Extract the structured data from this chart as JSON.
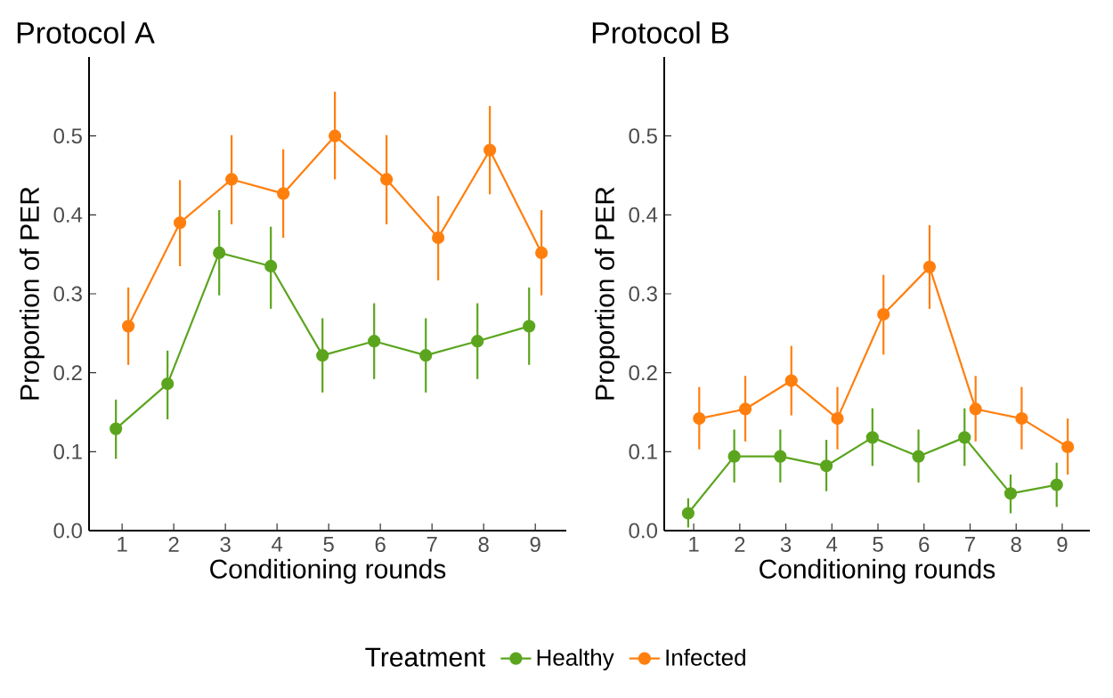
{
  "chart_data": [
    {
      "type": "line",
      "title": "Protocol A",
      "xlabel": "Conditioning rounds",
      "ylabel": "Proportion of PER",
      "categories": [
        "1",
        "2",
        "3",
        "4",
        "5",
        "6",
        "7",
        "8",
        "9"
      ],
      "ylim": [
        0,
        0.6
      ],
      "yticks": [
        {
          "value": 0,
          "label": "0.0"
        },
        0.1,
        0.2,
        0.3,
        0.4,
        0.5
      ],
      "marker": "circle",
      "series": [
        {
          "color": "#5ba51e",
          "values": [
            0.129,
            0.186,
            0.352,
            0.335,
            0.222,
            0.24,
            0.222,
            0.24,
            0.259
          ],
          "errors": [
            [
              0.091,
              0.166
            ],
            [
              0.141,
              0.228
            ],
            [
              0.298,
              0.406
            ],
            [
              0.281,
              0.385
            ],
            [
              0.175,
              0.269
            ],
            [
              0.192,
              0.288
            ],
            [
              0.175,
              0.269
            ],
            [
              0.192,
              0.288
            ],
            [
              0.21,
              0.308
            ]
          ]
        },
        {
          "color": "#ff7f0e",
          "values": [
            0.259,
            0.39,
            0.445,
            0.427,
            0.5,
            0.445,
            0.371,
            0.482,
            0.352
          ],
          "errors": [
            [
              0.21,
              0.308
            ],
            [
              0.335,
              0.444
            ],
            [
              0.388,
              0.501
            ],
            [
              0.371,
              0.483
            ],
            [
              0.445,
              0.556
            ],
            [
              0.388,
              0.501
            ],
            [
              0.317,
              0.424
            ],
            [
              0.426,
              0.538
            ],
            [
              0.298,
              0.406
            ]
          ]
        }
      ]
    },
    {
      "type": "line",
      "title": "Protocol B",
      "xlabel": "Conditioning rounds",
      "ylabel": "Proportion of PER",
      "categories": [
        "1",
        "2",
        "3",
        "4",
        "5",
        "6",
        "7",
        "8",
        "9"
      ],
      "ylim": [
        0,
        0.6
      ],
      "yticks": [
        {
          "value": 0,
          "label": "0.0"
        },
        0.1,
        0.2,
        0.3,
        0.4,
        0.5
      ],
      "marker": "circle",
      "legend": "bottom",
      "legend_title": "Treatment",
      "series": [
        {
          "name": "Healthy",
          "color": "#5ba51e",
          "values": [
            0.022,
            0.094,
            0.094,
            0.082,
            0.118,
            0.094,
            0.118,
            0.047,
            0.058
          ],
          "errors": [
            [
              0.004,
              0.041
            ],
            [
              0.061,
              0.128
            ],
            [
              0.061,
              0.128
            ],
            [
              0.05,
              0.115
            ],
            [
              0.082,
              0.155
            ],
            [
              0.061,
              0.128
            ],
            [
              0.082,
              0.155
            ],
            [
              0.022,
              0.071
            ],
            [
              0.03,
              0.086
            ]
          ]
        },
        {
          "name": "Infected",
          "color": "#ff7f0e",
          "values": [
            0.142,
            0.154,
            0.19,
            0.142,
            0.274,
            0.334,
            0.154,
            0.142,
            0.106
          ],
          "errors": [
            [
              0.103,
              0.182
            ],
            [
              0.113,
              0.196
            ],
            [
              0.146,
              0.234
            ],
            [
              0.103,
              0.182
            ],
            [
              0.223,
              0.324
            ],
            [
              0.281,
              0.387
            ],
            [
              0.113,
              0.196
            ],
            [
              0.103,
              0.182
            ],
            [
              0.071,
              0.142
            ]
          ]
        }
      ]
    }
  ]
}
